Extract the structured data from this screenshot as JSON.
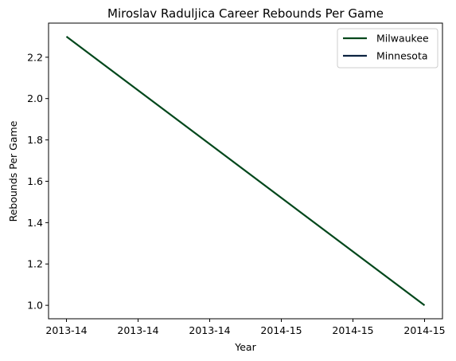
{
  "chart_data": {
    "type": "line",
    "title": "Miroslav Raduljica Career Rebounds Per Game",
    "xlabel": "Year",
    "ylabel": "Rebounds Per Game",
    "x_ticks": [
      "2013-14",
      "2013-14",
      "2013-14",
      "2014-15",
      "2014-15",
      "2014-15"
    ],
    "y_ticks": [
      "1.0",
      "1.2",
      "1.4",
      "1.6",
      "1.8",
      "2.0",
      "2.2"
    ],
    "ylim": [
      0.935,
      2.365
    ],
    "grid": false,
    "legend_position": "upper-right",
    "series": [
      {
        "name": "Milwaukee",
        "color": "#00471b",
        "points": [
          {
            "x": "2013-14",
            "y": 2.3
          },
          {
            "x": "2014-15",
            "y": 1.0
          }
        ]
      },
      {
        "name": "Minnesota",
        "color": "#0c2340",
        "points": []
      }
    ]
  }
}
